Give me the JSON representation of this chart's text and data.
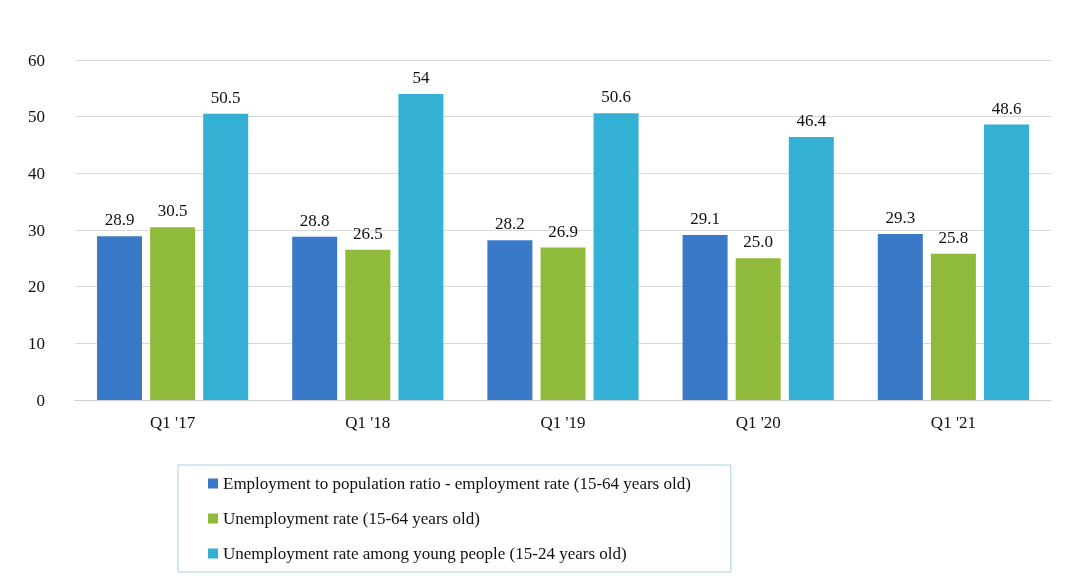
{
  "chart_data": {
    "type": "bar",
    "categories": [
      "Q1 '17",
      "Q1 '18",
      "Q1 '19",
      "Q1 '20",
      "Q1 '21"
    ],
    "series": [
      {
        "name": "Employment to population ratio - employment rate (15-64 years old)",
        "color": "#3a78c8",
        "values": [
          28.9,
          28.8,
          28.2,
          29.1,
          29.3
        ],
        "value_labels": [
          "28.9",
          "28.8",
          "28.2",
          "29.1",
          "29.3"
        ]
      },
      {
        "name": "Unemployment rate (15-64 years old)",
        "color": "#8fba3c",
        "values": [
          30.5,
          26.5,
          26.9,
          25.0,
          25.8
        ],
        "value_labels": [
          "30.5",
          "26.5",
          "26.9",
          "25.0",
          "25.8"
        ]
      },
      {
        "name": "Unemployment rate among young people (15-24 years old)",
        "color": "#33b0d3",
        "values": [
          50.5,
          54,
          50.6,
          46.4,
          48.6
        ],
        "value_labels": [
          "50.5",
          "54",
          "50.6",
          "46.4",
          "48.6"
        ]
      }
    ],
    "ylim": [
      0,
      60
    ],
    "yticks": [
      0,
      10,
      20,
      30,
      40,
      50,
      60
    ],
    "grid": "y",
    "legend": "bottom"
  }
}
